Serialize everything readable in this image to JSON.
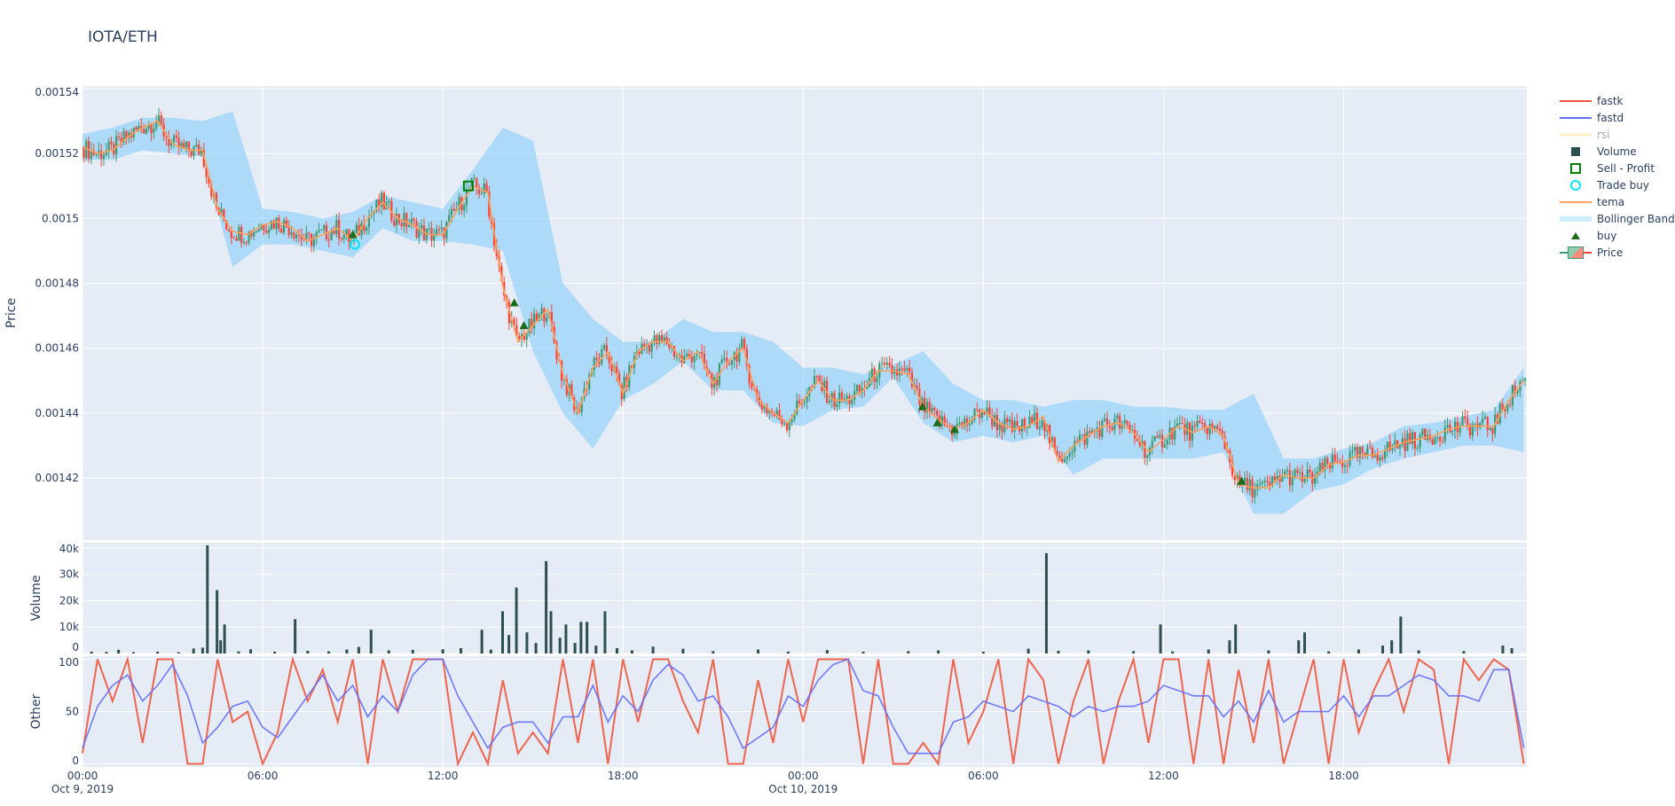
{
  "title": "IOTA/ETH",
  "colors": {
    "increasing": "#3d9970",
    "decreasing": "#ff4136",
    "tema": "#ffa15a",
    "fastk": "#ef553b",
    "fastd": "#636efa",
    "rsi": "#fecb52",
    "bollinger": "rgba(135,206,250,0.6)",
    "volume": "#2f4f4f",
    "buy": "#1a6b1a",
    "sell": "#008000",
    "trade_buy": "#00e5ff",
    "plot_bg": "#e5ecf6"
  },
  "legend": [
    {
      "name": "fastk",
      "icon": "line",
      "color": "#ef553b"
    },
    {
      "name": "fastd",
      "icon": "line",
      "color": "#636efa"
    },
    {
      "name": "rsi",
      "icon": "line-faded",
      "color": "#fecb52"
    },
    {
      "name": "Volume",
      "icon": "square-filled",
      "color": "#2f4f4f"
    },
    {
      "name": "Sell - Profit",
      "icon": "square-open",
      "color": "#008000"
    },
    {
      "name": "Trade buy",
      "icon": "circle-open",
      "color": "#00e5ff"
    },
    {
      "name": "tema",
      "icon": "line",
      "color": "#ffa15a"
    },
    {
      "name": "Bollinger Band",
      "icon": "band",
      "color": "#cceefc"
    },
    {
      "name": "buy",
      "icon": "triangle-up",
      "color": "#1a6b1a"
    },
    {
      "name": "Price",
      "icon": "candlestick",
      "color": "#3d9970"
    }
  ],
  "chart_data": [
    {
      "type": "candlestick",
      "ylabel": "Price",
      "ylim": [
        0.0014009,
        0.0015408
      ],
      "yticks": [
        "0.00142",
        "0.00144",
        "0.00146",
        "0.00148",
        "0.0015",
        "0.00152",
        "0.00154"
      ],
      "ytick_values": [
        0.00142,
        0.00144,
        0.00146,
        0.00148,
        0.0015,
        0.00152,
        0.00154
      ],
      "x_unit": "hours since Oct 9, 2019 00:00",
      "xlim": [
        0,
        48.1
      ],
      "xticks": [
        {
          "value": 0,
          "label": "00:00",
          "sub": "Oct 9, 2019"
        },
        {
          "value": 6,
          "label": "06:00"
        },
        {
          "value": 12,
          "label": "12:00"
        },
        {
          "value": 18,
          "label": "18:00"
        },
        {
          "value": 24,
          "label": "00:00",
          "sub": "Oct 10, 2019"
        },
        {
          "value": 30,
          "label": "06:00"
        },
        {
          "value": 36,
          "label": "12:00"
        },
        {
          "value": 42,
          "label": "18:00"
        }
      ],
      "grid": true,
      "tema": {
        "step_hours": 0.5,
        "values": [
          0.001522,
          0.00152,
          0.001521,
          0.001525,
          0.001528,
          0.00153,
          0.001523,
          0.001521,
          0.001521,
          0.001503,
          0.001496,
          0.001495,
          0.001498,
          0.001499,
          0.001497,
          0.001493,
          0.001495,
          0.001497,
          0.001493,
          0.0015,
          0.001505,
          0.0015,
          0.001498,
          0.001495,
          0.001495,
          0.001503,
          0.00151,
          0.001508,
          0.001479,
          0.001462,
          0.001467,
          0.001472,
          0.001452,
          0.00144,
          0.001454,
          0.001459,
          0.001446,
          0.001459,
          0.001462,
          0.001462,
          0.001456,
          0.001459,
          0.001449,
          0.001456,
          0.00146,
          0.001444,
          0.00144,
          0.001437,
          0.001444,
          0.00145,
          0.001444,
          0.001444,
          0.001447,
          0.001453,
          0.001453,
          0.001452,
          0.001442,
          0.001438,
          0.001435,
          0.001437,
          0.001441,
          0.001437,
          0.001435,
          0.001436,
          0.001439,
          0.001425,
          0.00143,
          0.001433,
          0.001436,
          0.001437,
          0.001434,
          0.001428,
          0.001432,
          0.001436,
          0.001434,
          0.001436,
          0.001433,
          0.001418,
          0.001417,
          0.001417,
          0.001421,
          0.00142,
          0.00142,
          0.001424,
          0.001425,
          0.001427,
          0.001427,
          0.001429,
          0.001431,
          0.001432,
          0.001433,
          0.001435,
          0.001436,
          0.001436,
          0.001436,
          0.001444,
          0.00145
        ]
      },
      "bollinger": {
        "step_hours": 1,
        "upper": [
          0.001526,
          0.001528,
          0.001531,
          0.001531,
          0.00153,
          0.001533,
          0.001503,
          0.001502,
          0.0015,
          0.001502,
          0.001507,
          0.001505,
          0.001503,
          0.001515,
          0.001528,
          0.001524,
          0.00148,
          0.001469,
          0.001462,
          0.001462,
          0.001469,
          0.001465,
          0.001465,
          0.001462,
          0.001454,
          0.001454,
          0.001452,
          0.001455,
          0.001459,
          0.001449,
          0.001444,
          0.001444,
          0.001442,
          0.001444,
          0.001444,
          0.001442,
          0.001442,
          0.001441,
          0.001441,
          0.001446,
          0.001426,
          0.001426,
          0.001429,
          0.001431,
          0.001436,
          0.001437,
          0.001439,
          0.001441,
          0.001454
        ],
        "lower": [
          0.001518,
          0.001518,
          0.001521,
          0.00152,
          0.001519,
          0.001485,
          0.001492,
          0.001492,
          0.00149,
          0.001488,
          0.001497,
          0.001493,
          0.001493,
          0.001492,
          0.00149,
          0.001459,
          0.00144,
          0.001429,
          0.001444,
          0.001449,
          0.001456,
          0.001447,
          0.001447,
          0.001437,
          0.001436,
          0.001441,
          0.001442,
          0.001451,
          0.001437,
          0.001431,
          0.001433,
          0.001431,
          0.001433,
          0.001421,
          0.001426,
          0.001426,
          0.001426,
          0.001426,
          0.001428,
          0.001409,
          0.001409,
          0.001416,
          0.001418,
          0.001423,
          0.001426,
          0.001428,
          0.00143,
          0.00143,
          0.001428
        ]
      },
      "buy": [
        [
          9.0,
          0.001495
        ],
        [
          14.38,
          0.001474
        ],
        [
          14.7,
          0.001467
        ],
        [
          27.97,
          0.001442
        ],
        [
          28.47,
          0.001437
        ],
        [
          29.04,
          0.001435
        ],
        [
          38.6,
          0.001419
        ]
      ],
      "trade_buy": [
        [
          9.07,
          0.001492
        ]
      ],
      "sell_profit": [
        [
          12.85,
          0.00151
        ]
      ]
    },
    {
      "type": "bar",
      "ylabel": "Volume",
      "ylim": [
        0,
        42000
      ],
      "yticks": [
        "0",
        "10k",
        "20k",
        "30k",
        "40k"
      ],
      "ytick_values": [
        0,
        10000,
        20000,
        30000,
        40000
      ],
      "bars": [
        [
          0.3,
          700
        ],
        [
          0.8,
          600
        ],
        [
          1.2,
          1400
        ],
        [
          1.7,
          500
        ],
        [
          2.5,
          700
        ],
        [
          3.2,
          500
        ],
        [
          3.7,
          1900
        ],
        [
          4.0,
          2200
        ],
        [
          4.16,
          41000
        ],
        [
          4.48,
          24000
        ],
        [
          4.6,
          5000
        ],
        [
          4.73,
          11000
        ],
        [
          5.2,
          800
        ],
        [
          5.6,
          1600
        ],
        [
          6.4,
          700
        ],
        [
          7.08,
          13000
        ],
        [
          7.5,
          1000
        ],
        [
          8.2,
          800
        ],
        [
          8.8,
          1500
        ],
        [
          9.2,
          2500
        ],
        [
          9.61,
          9000
        ],
        [
          10.2,
          1200
        ],
        [
          11.0,
          1400
        ],
        [
          12.0,
          1600
        ],
        [
          12.6,
          2000
        ],
        [
          13.3,
          9000
        ],
        [
          13.6,
          1500
        ],
        [
          13.99,
          16000
        ],
        [
          14.2,
          7000
        ],
        [
          14.45,
          25000
        ],
        [
          14.8,
          8000
        ],
        [
          15.1,
          4000
        ],
        [
          15.44,
          35000
        ],
        [
          15.6,
          16000
        ],
        [
          15.9,
          6000
        ],
        [
          16.1,
          11000
        ],
        [
          16.4,
          4000
        ],
        [
          16.6,
          12000
        ],
        [
          16.8,
          12000
        ],
        [
          17.1,
          3000
        ],
        [
          17.4,
          16000
        ],
        [
          17.8,
          2000
        ],
        [
          18.3,
          1200
        ],
        [
          19.0,
          2600
        ],
        [
          20.0,
          1800
        ],
        [
          21.0,
          900
        ],
        [
          22.5,
          1500
        ],
        [
          23.5,
          700
        ],
        [
          24.8,
          1300
        ],
        [
          26.0,
          700
        ],
        [
          27.5,
          900
        ],
        [
          28.5,
          1200
        ],
        [
          30.0,
          700
        ],
        [
          31.5,
          1800
        ],
        [
          32.1,
          38000
        ],
        [
          32.5,
          1000
        ],
        [
          33.5,
          1200
        ],
        [
          35.0,
          900
        ],
        [
          35.9,
          11000
        ],
        [
          36.3,
          800
        ],
        [
          37.5,
          1500
        ],
        [
          38.2,
          5000
        ],
        [
          38.4,
          11000
        ],
        [
          39.5,
          1200
        ],
        [
          40.5,
          5000
        ],
        [
          40.7,
          8000
        ],
        [
          41.5,
          800
        ],
        [
          42.5,
          1500
        ],
        [
          43.3,
          3000
        ],
        [
          43.6,
          5000
        ],
        [
          43.9,
          14000
        ],
        [
          44.5,
          1200
        ],
        [
          46.0,
          900
        ],
        [
          47.3,
          3000
        ],
        [
          47.6,
          2000
        ]
      ]
    },
    {
      "type": "line",
      "ylabel": "Other",
      "ylim": [
        -3,
        103
      ],
      "yticks": [
        "0",
        "50",
        "100"
      ],
      "ytick_values": [
        0,
        50,
        100
      ],
      "step_hours": 0.5,
      "series": [
        {
          "name": "fastk",
          "values": [
            10,
            100,
            60,
            100,
            20,
            100,
            100,
            0,
            0,
            100,
            40,
            50,
            0,
            30,
            100,
            60,
            90,
            40,
            100,
            0,
            100,
            50,
            100,
            100,
            100,
            0,
            30,
            0,
            80,
            10,
            30,
            10,
            100,
            20,
            100,
            0,
            100,
            40,
            100,
            100,
            60,
            30,
            100,
            0,
            0,
            80,
            20,
            100,
            40,
            100,
            100,
            100,
            0,
            100,
            0,
            0,
            20,
            0,
            100,
            20,
            50,
            100,
            0,
            100,
            80,
            0,
            60,
            100,
            0,
            60,
            100,
            20,
            100,
            100,
            0,
            100,
            0,
            90,
            20,
            100,
            0,
            50,
            100,
            0,
            100,
            30,
            70,
            100,
            50,
            100,
            90,
            0,
            100,
            80,
            100,
            90,
            0
          ]
        },
        {
          "name": "fastd",
          "values": [
            15,
            55,
            75,
            85,
            60,
            75,
            95,
            65,
            20,
            35,
            55,
            60,
            35,
            25,
            45,
            65,
            85,
            60,
            75,
            45,
            65,
            50,
            85,
            100,
            100,
            65,
            40,
            15,
            35,
            40,
            40,
            20,
            45,
            45,
            75,
            40,
            65,
            50,
            80,
            95,
            85,
            60,
            65,
            45,
            15,
            25,
            35,
            65,
            55,
            80,
            95,
            100,
            70,
            65,
            35,
            10,
            10,
            10,
            40,
            45,
            60,
            55,
            50,
            65,
            60,
            55,
            45,
            55,
            50,
            55,
            55,
            60,
            75,
            70,
            65,
            65,
            45,
            60,
            40,
            70,
            40,
            50,
            50,
            50,
            65,
            45,
            65,
            65,
            75,
            85,
            80,
            65,
            65,
            60,
            90,
            90,
            15
          ]
        },
        {
          "name": "rsi",
          "values": []
        }
      ]
    }
  ]
}
